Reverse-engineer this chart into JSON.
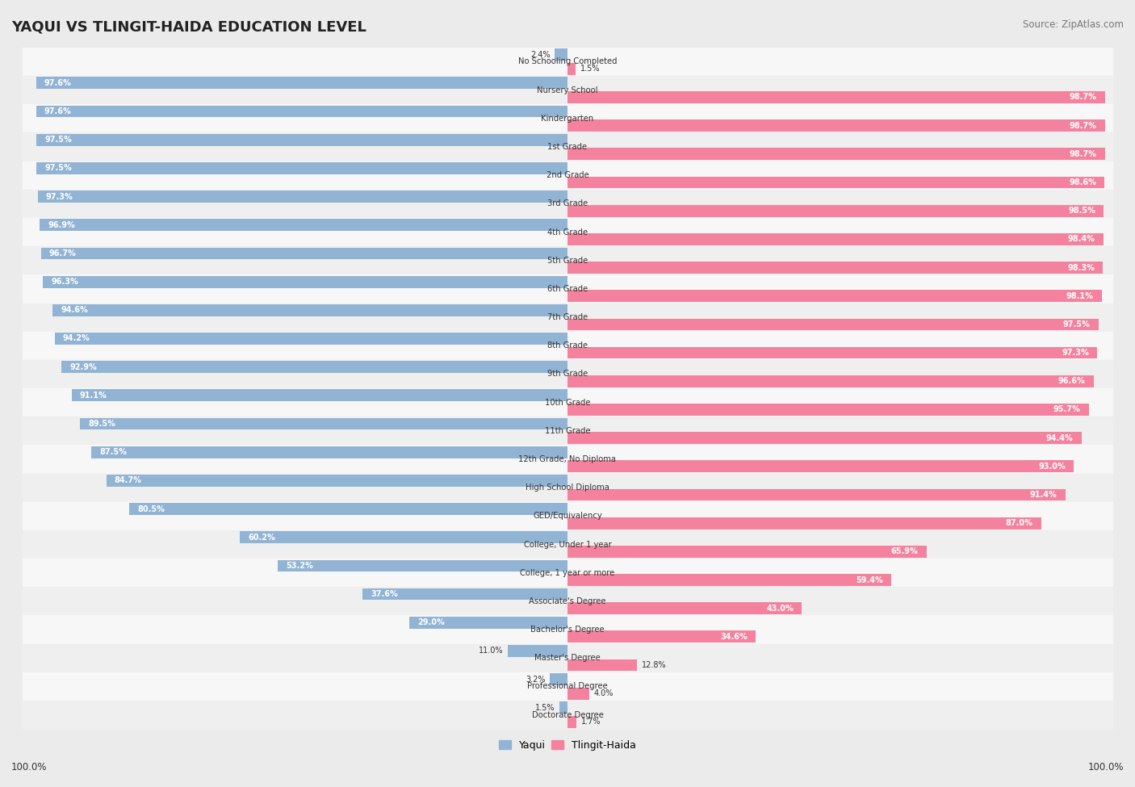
{
  "title": "YAQUI VS TLINGIT-HAIDA EDUCATION LEVEL",
  "source": "Source: ZipAtlas.com",
  "categories": [
    "No Schooling Completed",
    "Nursery School",
    "Kindergarten",
    "1st Grade",
    "2nd Grade",
    "3rd Grade",
    "4th Grade",
    "5th Grade",
    "6th Grade",
    "7th Grade",
    "8th Grade",
    "9th Grade",
    "10th Grade",
    "11th Grade",
    "12th Grade, No Diploma",
    "High School Diploma",
    "GED/Equivalency",
    "College, Under 1 year",
    "College, 1 year or more",
    "Associate's Degree",
    "Bachelor's Degree",
    "Master's Degree",
    "Professional Degree",
    "Doctorate Degree"
  ],
  "yaqui": [
    2.4,
    97.6,
    97.6,
    97.5,
    97.5,
    97.3,
    96.9,
    96.7,
    96.3,
    94.6,
    94.2,
    92.9,
    91.1,
    89.5,
    87.5,
    84.7,
    80.5,
    60.2,
    53.2,
    37.6,
    29.0,
    11.0,
    3.2,
    1.5
  ],
  "tlingit": [
    1.5,
    98.7,
    98.7,
    98.7,
    98.6,
    98.5,
    98.4,
    98.3,
    98.1,
    97.5,
    97.3,
    96.6,
    95.7,
    94.4,
    93.0,
    91.4,
    87.0,
    65.9,
    59.4,
    43.0,
    34.6,
    12.8,
    4.0,
    1.7
  ],
  "yaqui_color": "#92b4d4",
  "tlingit_color": "#f4829e",
  "bg_color": "#ebebeb",
  "row_color_even": "#f7f7f7",
  "row_color_odd": "#efefef",
  "label_color_inside": "#ffffff",
  "label_color_outside": "#555555",
  "x_left_label": "100.0%",
  "x_right_label": "100.0%"
}
